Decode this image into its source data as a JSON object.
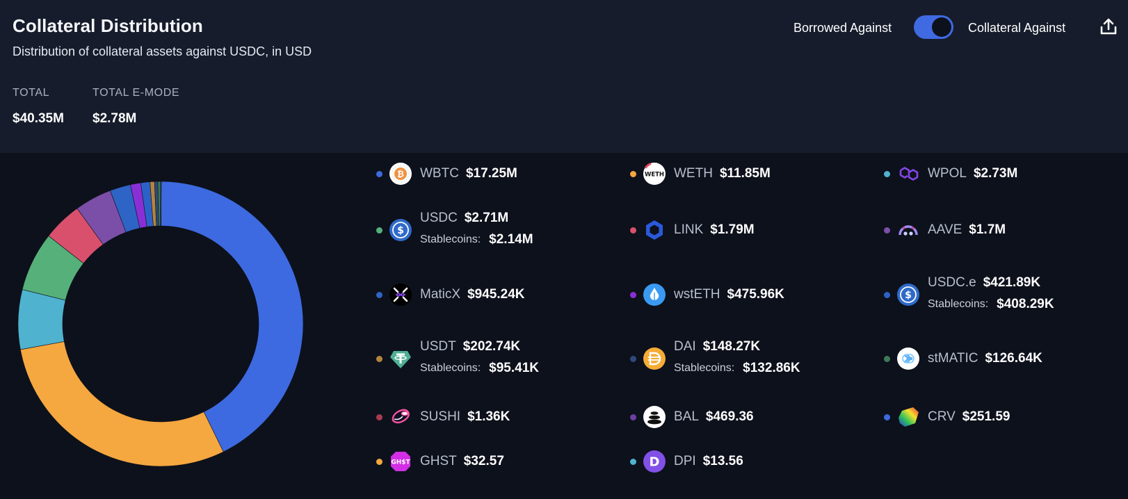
{
  "header": {
    "title": "Collateral Distribution",
    "subtitle": "Distribution of collateral assets against USDC, in USD",
    "stats": [
      {
        "label": "TOTAL",
        "value": "$40.35M"
      },
      {
        "label": "TOTAL E-MODE",
        "value": "$2.78M"
      }
    ],
    "toggle": {
      "left_label": "Borrowed Against",
      "right_label": "Collateral Against",
      "state": "Collateral Against"
    },
    "export_icon": "share-upload-icon"
  },
  "legend": [
    {
      "name": "WBTC",
      "value": "$17.25M",
      "color": "#3d6ae0",
      "icon": "wbtc-icon"
    },
    {
      "name": "WETH",
      "value": "$11.85M",
      "color": "#f5a740",
      "icon": "weth-icon"
    },
    {
      "name": "WPOL",
      "value": "$2.73M",
      "color": "#4fb3cf",
      "icon": "wpol-icon"
    },
    {
      "name": "USDC",
      "value": "$2.71M",
      "color": "#56b07a",
      "icon": "usdc-icon",
      "stable_label": "Stablecoins:",
      "stable_value": "$2.14M"
    },
    {
      "name": "LINK",
      "value": "$1.79M",
      "color": "#d9506c",
      "icon": "link-icon"
    },
    {
      "name": "AAVE",
      "value": "$1.7M",
      "color": "#7b4fa8",
      "icon": "aave-icon"
    },
    {
      "name": "MaticX",
      "value": "$945.24K",
      "color": "#2e64c5",
      "icon": "maticx-icon"
    },
    {
      "name": "wstETH",
      "value": "$475.96K",
      "color": "#8a2fd6",
      "icon": "wsteth-icon"
    },
    {
      "name": "USDC.e",
      "value": "$421.89K",
      "color": "#2c62c8",
      "icon": "usdce-icon",
      "stable_label": "Stablecoins:",
      "stable_value": "$408.29K"
    },
    {
      "name": "USDT",
      "value": "$202.74K",
      "color": "#b5843e",
      "icon": "usdt-icon",
      "stable_label": "Stablecoins:",
      "stable_value": "$95.41K"
    },
    {
      "name": "DAI",
      "value": "$148.27K",
      "color": "#2e4a7c",
      "icon": "dai-icon",
      "stable_label": "Stablecoins:",
      "stable_value": "$132.86K"
    },
    {
      "name": "stMATIC",
      "value": "$126.64K",
      "color": "#3f7a58",
      "icon": "stmatic-icon"
    },
    {
      "name": "SUSHI",
      "value": "$1.36K",
      "color": "#a83a52",
      "icon": "sushi-icon"
    },
    {
      "name": "BAL",
      "value": "$469.36",
      "color": "#6e3fa0",
      "icon": "bal-icon"
    },
    {
      "name": "CRV",
      "value": "$251.59",
      "color": "#3d6ae0",
      "icon": "crv-icon"
    },
    {
      "name": "GHST",
      "value": "$32.57",
      "color": "#f5a740",
      "icon": "ghst-icon"
    },
    {
      "name": "DPI",
      "value": "$13.56",
      "color": "#4fb3cf",
      "icon": "dpi-icon"
    }
  ],
  "chart_data": {
    "type": "pie",
    "donut": true,
    "categories": [
      "WBTC",
      "WETH",
      "WPOL",
      "USDC",
      "LINK",
      "AAVE",
      "MaticX",
      "wstETH",
      "USDC.e",
      "USDT",
      "DAI",
      "stMATIC",
      "SUSHI",
      "BAL",
      "CRV",
      "GHST",
      "DPI"
    ],
    "values": [
      17250000,
      11850000,
      2730000,
      2710000,
      1790000,
      1700000,
      945240,
      475960,
      421890,
      202740,
      148270,
      126640,
      1360,
      469.36,
      251.59,
      32.57,
      13.56
    ],
    "colors": [
      "#3d6ae0",
      "#f5a740",
      "#4fb3cf",
      "#56b07a",
      "#d9506c",
      "#7b4fa8",
      "#2e64c5",
      "#8a2fd6",
      "#2c62c8",
      "#b5843e",
      "#2e4a7c",
      "#3f7a58",
      "#a83a52",
      "#6e3fa0",
      "#3d6ae0",
      "#f5a740",
      "#4fb3cf"
    ]
  }
}
